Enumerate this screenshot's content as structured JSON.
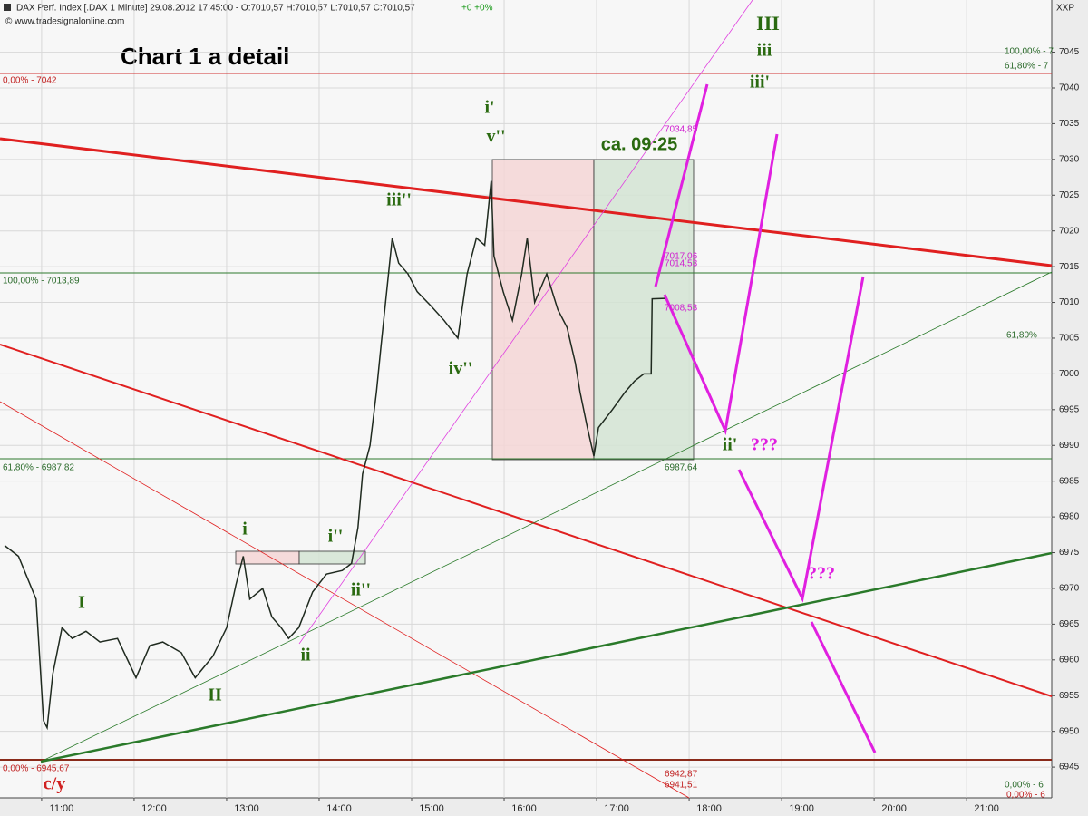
{
  "chart_data": {
    "type": "line",
    "title": "Chart 1 a detail",
    "header": "DAX Perf. Index [.DAX  1 Minute] 29.08.2012 17:45:00 - O:7010,57 H:7010,57 L:7010,57 C:7010,57",
    "header_change": "+0 +0%",
    "source": "© www.tradesignalonline.com",
    "corner_label": "XXP",
    "color": "#1f2a1f",
    "grid": true,
    "x": [
      10.6,
      10.75,
      10.94,
      11.02,
      11.06,
      11.12,
      11.22,
      11.33,
      11.48,
      11.63,
      11.82,
      12.02,
      12.17,
      12.31,
      12.51,
      12.66,
      12.85,
      13.0,
      13.1,
      13.18,
      13.25,
      13.39,
      13.49,
      13.59,
      13.67,
      13.78,
      13.93,
      14.08,
      14.25,
      14.35,
      14.42,
      14.47,
      14.55,
      14.62,
      14.67,
      14.75,
      14.79,
      14.86,
      14.96,
      15.06,
      15.21,
      15.35,
      15.5,
      15.6,
      15.7,
      15.79,
      15.86,
      15.89,
      15.99,
      16.09,
      16.19,
      16.25,
      16.33,
      16.46,
      16.58,
      16.68,
      16.77,
      16.82,
      16.9,
      16.97,
      17.02,
      17.17,
      17.31,
      17.41,
      17.51,
      17.59,
      17.6,
      17.74
    ],
    "values": [
      6976,
      6974.5,
      6968.5,
      6951.5,
      6950.5,
      6958,
      6964.5,
      6963,
      6964,
      6962.5,
      6963,
      6957.5,
      6962,
      6962.5,
      6961,
      6957.5,
      6960.5,
      6964.5,
      6970.5,
      6974.5,
      6968.5,
      6970,
      6966,
      6964.5,
      6963,
      6964.5,
      6969.5,
      6972,
      6972.5,
      6973.5,
      6978.5,
      6986,
      6990,
      6997.5,
      7004,
      7014,
      7019,
      7015.5,
      7014,
      7011.5,
      7009.5,
      7007.5,
      7005,
      7014,
      7019,
      7018,
      7027,
      7016.5,
      7011.5,
      7007.5,
      7014,
      7019,
      7010,
      7014,
      7009,
      7006.5,
      7001.5,
      6997.5,
      6992.5,
      6988.5,
      6992.5,
      6995,
      6997.5,
      6999,
      7000,
      7000,
      7010.5,
      7010.57
    ],
    "xlim": [
      10.55,
      21.92
    ],
    "xticks": [
      {
        "value": 11,
        "label": "11:00"
      },
      {
        "value": 12,
        "label": "12:00"
      },
      {
        "value": 13,
        "label": "13:00"
      },
      {
        "value": 14,
        "label": "14:00"
      },
      {
        "value": 15,
        "label": "15:00"
      },
      {
        "value": 16,
        "label": "16:00"
      },
      {
        "value": 17,
        "label": "17:00"
      },
      {
        "value": 18,
        "label": "18:00"
      },
      {
        "value": 19,
        "label": "19:00"
      },
      {
        "value": 20,
        "label": "20:00"
      },
      {
        "value": 21,
        "label": "21:00"
      }
    ],
    "ylim": [
      6940.7,
      7052.3
    ],
    "yticks": [
      6945,
      6950,
      6955,
      6960,
      6965,
      6970,
      6975,
      6980,
      6985,
      6990,
      6995,
      7000,
      7005,
      7010,
      7015,
      7020,
      7025,
      7030,
      7035,
      7040,
      7045
    ],
    "levels": [
      "0,00% - 7042",
      "100,00% - 7013,89",
      "61,80% - 6987,82",
      "0,00% - 6945,67",
      "100,00% - 7",
      "61,80% - 7",
      "61,80% -",
      "0,00% - 6",
      "0,00% - 6"
    ],
    "price_labels": [
      "7034,85",
      "7017,06",
      "7014,53",
      "7008,53",
      "6987,64",
      "6942,87",
      "6941,51"
    ],
    "wave_labels": [
      "III",
      "iii",
      "iii'",
      "i'",
      "v''",
      "iii''",
      "iv''",
      "i",
      "i''",
      "ii''",
      "ii",
      "I",
      "II",
      "ii'",
      "ca. 09:25",
      "c/y",
      "???",
      "???"
    ]
  }
}
